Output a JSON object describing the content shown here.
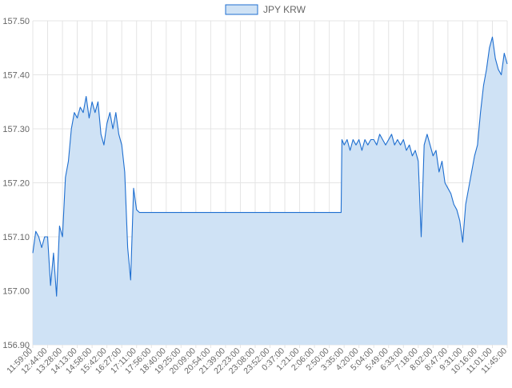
{
  "chart_data": {
    "type": "area",
    "title": "",
    "xlabel": "",
    "ylabel": "",
    "legend": {
      "position": "top-center"
    },
    "grid": true,
    "colors": {
      "line": "#1f6fd0",
      "fill": "#cfe2f5",
      "grid": "#e4e4e4",
      "text": "#666666"
    },
    "ylim": [
      156.9,
      157.5
    ],
    "yticks": [
      "157.50",
      "157.40",
      "157.30",
      "157.20",
      "157.10",
      "157.00",
      "156.90"
    ],
    "xticks": [
      "11:59:00",
      "12:44:00",
      "13:28:00",
      "14:13:00",
      "14:58:00",
      "15:42:00",
      "16:27:00",
      "17:11:00",
      "17:56:00",
      "18:40:00",
      "19:25:00",
      "20:09:00",
      "20:54:00",
      "21:39:00",
      "22:23:00",
      "23:08:00",
      "23:52:00",
      "0:37:00",
      "1:21:00",
      "2:06:00",
      "2:50:00",
      "3:35:00",
      "4:20:00",
      "5:04:00",
      "5:49:00",
      "6:33:00",
      "7:18:00",
      "8:02:00",
      "8:47:00",
      "9:31:00",
      "10:16:00",
      "11:01:00",
      "11:45:00"
    ],
    "series": [
      {
        "name": "JPY KRW",
        "x_index": [
          0,
          0.2,
          0.4,
          0.6,
          0.8,
          1.0,
          1.2,
          1.4,
          1.6,
          1.8,
          2.0,
          2.2,
          2.4,
          2.6,
          2.8,
          3.0,
          3.2,
          3.4,
          3.6,
          3.8,
          4.0,
          4.2,
          4.4,
          4.6,
          4.8,
          5.0,
          5.2,
          5.4,
          5.6,
          5.8,
          6.0,
          6.2,
          6.4,
          6.6,
          6.8,
          7.0,
          7.2,
          7.4,
          7.6,
          7.8,
          8.0,
          8.2,
          8.4,
          8.6,
          8.8,
          9.0,
          9.2,
          9.4,
          9.6,
          9.8,
          10.0,
          10.2,
          10.4,
          10.6,
          10.8,
          11.0,
          11.2,
          11.4,
          11.6,
          11.8,
          12.0,
          12.2,
          12.4,
          12.6,
          12.8,
          13.0,
          13.2,
          13.4,
          13.6,
          13.8,
          14.0,
          14.2,
          14.4,
          14.6,
          14.8,
          15.0,
          15.2,
          15.4,
          15.6,
          15.8,
          16.0,
          16.2,
          16.4,
          16.6,
          16.8,
          17.0,
          17.2,
          17.4,
          17.6,
          17.8,
          18.0,
          18.2,
          18.4,
          18.6,
          18.8,
          19.0,
          19.2,
          19.4,
          19.6,
          19.8,
          20.0,
          20.2,
          20.4,
          20.6,
          20.8,
          20.85,
          21.0,
          21.2,
          21.4,
          21.6,
          21.8,
          22.0,
          22.2,
          22.4,
          22.6,
          22.8,
          23.0,
          23.2,
          23.4,
          23.6,
          23.8,
          24.0,
          24.2,
          24.4,
          24.6,
          24.8,
          25.0,
          25.2,
          25.4,
          25.6,
          25.8,
          26.0,
          26.2,
          26.4,
          26.6,
          26.8,
          27.0,
          27.2,
          27.4,
          27.6,
          27.8,
          28.0,
          28.2,
          28.4,
          28.6,
          28.8,
          29.0,
          29.2,
          29.4,
          29.6,
          29.8,
          30.0,
          30.2,
          30.4,
          30.6,
          30.8,
          31.0,
          31.2,
          31.4,
          31.6,
          31.8,
          32.0
        ],
        "values": [
          157.07,
          157.11,
          157.1,
          157.08,
          157.1,
          157.1,
          157.01,
          157.07,
          156.99,
          157.12,
          157.1,
          157.21,
          157.24,
          157.3,
          157.33,
          157.32,
          157.34,
          157.33,
          157.36,
          157.32,
          157.35,
          157.33,
          157.35,
          157.29,
          157.27,
          157.31,
          157.33,
          157.3,
          157.33,
          157.29,
          157.27,
          157.22,
          157.08,
          157.02,
          157.19,
          157.15,
          157.145,
          157.145,
          157.145,
          157.145,
          157.145,
          157.145,
          157.145,
          157.145,
          157.145,
          157.145,
          157.145,
          157.145,
          157.145,
          157.145,
          157.145,
          157.145,
          157.145,
          157.145,
          157.145,
          157.145,
          157.145,
          157.145,
          157.145,
          157.145,
          157.145,
          157.145,
          157.145,
          157.145,
          157.145,
          157.145,
          157.145,
          157.145,
          157.145,
          157.145,
          157.145,
          157.145,
          157.145,
          157.145,
          157.145,
          157.145,
          157.145,
          157.145,
          157.145,
          157.145,
          157.145,
          157.145,
          157.145,
          157.145,
          157.145,
          157.145,
          157.145,
          157.145,
          157.145,
          157.145,
          157.145,
          157.145,
          157.145,
          157.145,
          157.145,
          157.145,
          157.145,
          157.145,
          157.145,
          157.145,
          157.145,
          157.145,
          157.145,
          157.145,
          157.145,
          157.28,
          157.27,
          157.28,
          157.26,
          157.28,
          157.27,
          157.28,
          157.26,
          157.28,
          157.27,
          157.28,
          157.28,
          157.27,
          157.29,
          157.28,
          157.27,
          157.28,
          157.29,
          157.27,
          157.28,
          157.27,
          157.28,
          157.26,
          157.27,
          157.25,
          157.26,
          157.24,
          157.1,
          157.27,
          157.29,
          157.27,
          157.25,
          157.26,
          157.22,
          157.24,
          157.2,
          157.19,
          157.18,
          157.16,
          157.15,
          157.13,
          157.09,
          157.16,
          157.19,
          157.22,
          157.25,
          157.27,
          157.33,
          157.38,
          157.41,
          157.45,
          157.47,
          157.43,
          157.41,
          157.4,
          157.44,
          157.42
        ]
      }
    ]
  }
}
